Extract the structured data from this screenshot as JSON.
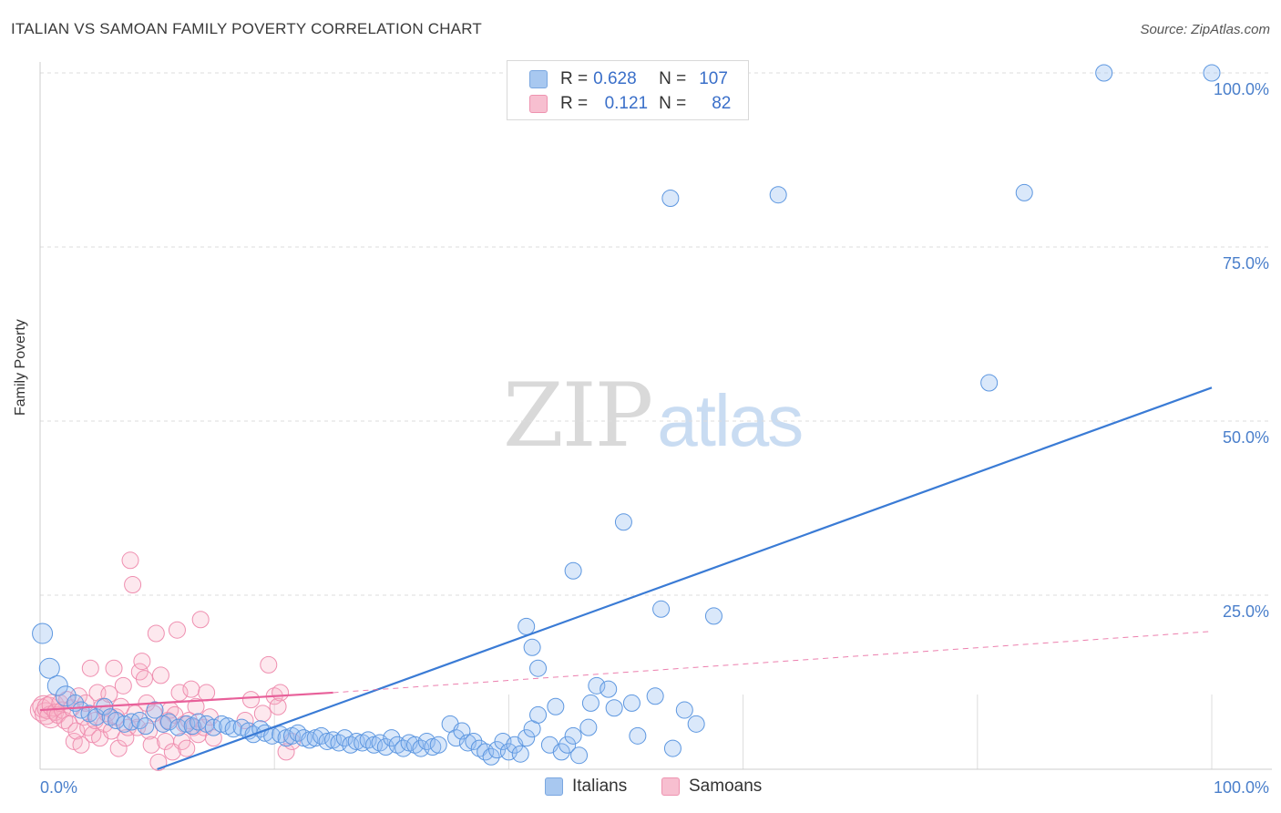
{
  "title": "ITALIAN VS SAMOAN FAMILY POVERTY CORRELATION CHART",
  "source": "Source: ZipAtlas.com",
  "watermark": {
    "zip": "ZIP",
    "atlas": "atlas"
  },
  "legend": {
    "rows": [
      {
        "r_label": "R =",
        "r_value": "0.628",
        "n_label": "N =",
        "n_value": "107",
        "color": "#a8c8f0",
        "border": "#7aa7e0"
      },
      {
        "r_label": "R =",
        "r_value": "0.121",
        "n_label": "N =",
        "n_value": "82",
        "color": "#f7bfd0",
        "border": "#ee93b0"
      }
    ]
  },
  "bottom_legend": {
    "italians": "Italians",
    "samoans": "Samoans"
  },
  "colors": {
    "blue": "#3a7bd5",
    "blue_fill": "rgba(150,190,240,0.35)",
    "blue_stroke": "#5d97e0",
    "pink": "#e8609a",
    "pink_fill": "rgba(247,180,200,0.30)",
    "pink_stroke": "#ef8fb0",
    "tick": "#4a7fcb",
    "grid": "#dddddd"
  },
  "chart_data": {
    "type": "scatter",
    "title": "ITALIAN VS SAMOAN FAMILY POVERTY CORRELATION CHART",
    "xlabel": "",
    "ylabel": "Family Poverty",
    "xlim": [
      0,
      100
    ],
    "ylim": [
      0,
      100
    ],
    "x_tick_labels": [
      "0.0%",
      "100.0%"
    ],
    "y_tick_labels": [
      "25.0%",
      "50.0%",
      "75.0%",
      "100.0%"
    ],
    "y_ticks": [
      25,
      50,
      75,
      100
    ],
    "grid": true,
    "series": [
      {
        "name": "Italians",
        "r": 0.628,
        "n": 107,
        "trend": {
          "x0": 10,
          "y0": 0,
          "x1": 100,
          "y1": 54.8
        },
        "points": [
          [
            0.2,
            19.5
          ],
          [
            0.8,
            14.5
          ],
          [
            1.5,
            12.0
          ],
          [
            2.2,
            10.5
          ],
          [
            3.0,
            9.5
          ],
          [
            3.5,
            8.5
          ],
          [
            4.2,
            8.0
          ],
          [
            4.8,
            7.5
          ],
          [
            5.5,
            9.0
          ],
          [
            6.0,
            7.5
          ],
          [
            6.5,
            7.0
          ],
          [
            7.2,
            6.5
          ],
          [
            7.8,
            6.8
          ],
          [
            8.5,
            7.0
          ],
          [
            9.0,
            6.2
          ],
          [
            9.8,
            8.5
          ],
          [
            10.5,
            6.5
          ],
          [
            11.0,
            6.8
          ],
          [
            11.8,
            6.0
          ],
          [
            12.5,
            6.5
          ],
          [
            13.0,
            6.2
          ],
          [
            13.5,
            6.8
          ],
          [
            14.2,
            6.5
          ],
          [
            14.8,
            6.0
          ],
          [
            15.5,
            6.5
          ],
          [
            16.0,
            6.2
          ],
          [
            16.5,
            5.8
          ],
          [
            17.2,
            6.0
          ],
          [
            17.8,
            5.5
          ],
          [
            18.2,
            5.0
          ],
          [
            18.8,
            5.8
          ],
          [
            19.2,
            5.2
          ],
          [
            19.8,
            4.8
          ],
          [
            20.5,
            5.0
          ],
          [
            21.0,
            4.5
          ],
          [
            21.5,
            4.8
          ],
          [
            22.0,
            5.2
          ],
          [
            22.5,
            4.5
          ],
          [
            23.0,
            4.2
          ],
          [
            23.5,
            4.5
          ],
          [
            24.0,
            4.8
          ],
          [
            24.5,
            4.0
          ],
          [
            25.0,
            4.2
          ],
          [
            25.5,
            3.8
          ],
          [
            26.0,
            4.5
          ],
          [
            26.5,
            3.5
          ],
          [
            27.0,
            4.0
          ],
          [
            27.5,
            3.8
          ],
          [
            28.0,
            4.2
          ],
          [
            28.5,
            3.5
          ],
          [
            29.0,
            3.8
          ],
          [
            29.5,
            3.2
          ],
          [
            30.0,
            4.5
          ],
          [
            30.5,
            3.5
          ],
          [
            31.0,
            3.0
          ],
          [
            31.5,
            3.8
          ],
          [
            32.0,
            3.5
          ],
          [
            32.5,
            3.0
          ],
          [
            33.0,
            4.0
          ],
          [
            33.5,
            3.2
          ],
          [
            34.0,
            3.5
          ],
          [
            35.0,
            6.5
          ],
          [
            35.5,
            4.5
          ],
          [
            36.0,
            5.5
          ],
          [
            36.5,
            3.8
          ],
          [
            37.0,
            4.0
          ],
          [
            37.5,
            3.0
          ],
          [
            38.0,
            2.5
          ],
          [
            38.5,
            1.8
          ],
          [
            39.0,
            2.8
          ],
          [
            39.5,
            4.0
          ],
          [
            40.0,
            2.5
          ],
          [
            40.5,
            3.5
          ],
          [
            41.0,
            2.2
          ],
          [
            41.5,
            4.5
          ],
          [
            42.0,
            5.8
          ],
          [
            42.5,
            7.8
          ],
          [
            43.5,
            3.5
          ],
          [
            44.0,
            9.0
          ],
          [
            44.5,
            2.5
          ],
          [
            45.0,
            3.5
          ],
          [
            45.5,
            4.8
          ],
          [
            46.0,
            2.0
          ],
          [
            46.8,
            6.0
          ],
          [
            47.5,
            12.0
          ],
          [
            47.0,
            9.5
          ],
          [
            48.5,
            11.5
          ],
          [
            49.0,
            8.8
          ],
          [
            50.5,
            9.5
          ],
          [
            51.0,
            4.8
          ],
          [
            52.5,
            10.5
          ],
          [
            54.0,
            3.0
          ],
          [
            55.0,
            8.5
          ],
          [
            56.0,
            6.5
          ],
          [
            57.5,
            22.0
          ],
          [
            41.5,
            20.5
          ],
          [
            42.0,
            17.5
          ],
          [
            42.5,
            14.5
          ],
          [
            45.5,
            28.5
          ],
          [
            49.8,
            35.5
          ],
          [
            53.0,
            23.0
          ],
          [
            53.8,
            82.0
          ],
          [
            63.0,
            82.5
          ],
          [
            84.0,
            82.8
          ],
          [
            81.0,
            55.5
          ],
          [
            90.8,
            100.0
          ],
          [
            100.0,
            100.0
          ]
        ]
      },
      {
        "name": "Samoans",
        "r": 0.121,
        "n": 82,
        "trend_solid": {
          "x0": 0,
          "y0": 8.5,
          "x1": 25,
          "y1": 11.0
        },
        "trend_dashed": {
          "x0": 25,
          "y0": 11.0,
          "x1": 100,
          "y1": 19.8
        },
        "points": [
          [
            0.1,
            8.5
          ],
          [
            0.3,
            9.0
          ],
          [
            0.5,
            8.0
          ],
          [
            0.7,
            8.8
          ],
          [
            0.9,
            7.5
          ],
          [
            1.1,
            9.2
          ],
          [
            1.3,
            8.2
          ],
          [
            1.5,
            7.8
          ],
          [
            1.7,
            9.5
          ],
          [
            1.9,
            8.5
          ],
          [
            2.1,
            7.0
          ],
          [
            2.3,
            10.0
          ],
          [
            2.5,
            6.5
          ],
          [
            2.7,
            8.8
          ],
          [
            2.9,
            4.0
          ],
          [
            3.1,
            5.5
          ],
          [
            3.3,
            10.5
          ],
          [
            3.5,
            3.5
          ],
          [
            3.7,
            7.5
          ],
          [
            3.9,
            9.5
          ],
          [
            4.1,
            6.0
          ],
          [
            4.3,
            14.5
          ],
          [
            4.5,
            5.0
          ],
          [
            4.7,
            7.0
          ],
          [
            4.9,
            11.0
          ],
          [
            5.1,
            4.5
          ],
          [
            5.3,
            9.0
          ],
          [
            5.5,
            6.5
          ],
          [
            5.7,
            8.0
          ],
          [
            5.9,
            10.8
          ],
          [
            6.1,
            5.5
          ],
          [
            6.3,
            14.5
          ],
          [
            6.5,
            7.5
          ],
          [
            6.7,
            3.0
          ],
          [
            6.9,
            9.0
          ],
          [
            7.1,
            12.0
          ],
          [
            7.3,
            4.5
          ],
          [
            7.5,
            6.0
          ],
          [
            7.7,
            30.0
          ],
          [
            7.9,
            26.5
          ],
          [
            8.1,
            8.0
          ],
          [
            8.3,
            6.0
          ],
          [
            8.5,
            14.0
          ],
          [
            8.7,
            15.5
          ],
          [
            8.9,
            13.0
          ],
          [
            9.1,
            9.5
          ],
          [
            9.3,
            5.5
          ],
          [
            9.5,
            3.5
          ],
          [
            9.7,
            8.0
          ],
          [
            9.9,
            19.5
          ],
          [
            10.1,
            1.0
          ],
          [
            10.3,
            13.5
          ],
          [
            10.5,
            6.5
          ],
          [
            10.7,
            4.0
          ],
          [
            10.9,
            7.0
          ],
          [
            11.1,
            8.5
          ],
          [
            11.3,
            2.5
          ],
          [
            11.5,
            7.8
          ],
          [
            11.7,
            20.0
          ],
          [
            11.9,
            11.0
          ],
          [
            12.1,
            4.0
          ],
          [
            12.3,
            6.5
          ],
          [
            12.5,
            3.0
          ],
          [
            12.7,
            7.0
          ],
          [
            12.9,
            11.5
          ],
          [
            13.1,
            6.0
          ],
          [
            13.3,
            9.0
          ],
          [
            13.5,
            5.0
          ],
          [
            13.7,
            21.5
          ],
          [
            14.0,
            6.0
          ],
          [
            14.2,
            11.0
          ],
          [
            14.5,
            7.5
          ],
          [
            14.8,
            4.5
          ],
          [
            17.5,
            7.0
          ],
          [
            18.0,
            10.0
          ],
          [
            19.0,
            8.0
          ],
          [
            19.5,
            15.0
          ],
          [
            20.0,
            10.5
          ],
          [
            20.3,
            9.0
          ],
          [
            20.5,
            11.0
          ],
          [
            21.0,
            2.5
          ],
          [
            21.5,
            4.0
          ]
        ]
      }
    ]
  }
}
